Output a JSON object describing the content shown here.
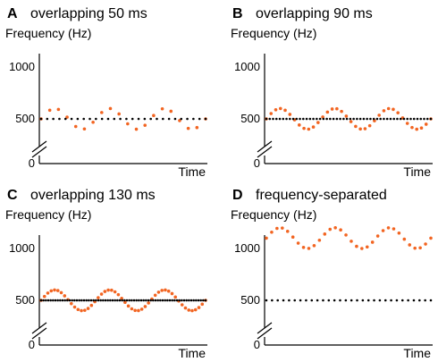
{
  "chart_data": [
    {
      "panel": "A",
      "title": "overlapping 50 ms",
      "type": "scatter",
      "ylabel": "Frequency (Hz)",
      "xlabel": "Time",
      "yticks": [
        0,
        500,
        1000
      ],
      "ylim": [
        0,
        1250
      ],
      "axis_break": true,
      "grid": false,
      "series": [
        {
          "role": "varying",
          "color": "#f26522",
          "dotted": true,
          "pattern": "sine",
          "center": 500,
          "amplitude": 100,
          "cycles": 3,
          "points": 20
        },
        {
          "role": "constant",
          "color": "#000000",
          "dotted": true,
          "pattern": "constant",
          "center": 500,
          "points": 28
        }
      ]
    },
    {
      "panel": "B",
      "title": "overlapping 90 ms",
      "type": "scatter",
      "ylabel": "Frequency (Hz)",
      "xlabel": "Time",
      "yticks": [
        0,
        500,
        1000
      ],
      "ylim": [
        0,
        1250
      ],
      "axis_break": true,
      "grid": false,
      "series": [
        {
          "role": "varying",
          "color": "#f26522",
          "dotted": true,
          "pattern": "sine",
          "center": 500,
          "amplitude": 100,
          "cycles": 3,
          "points": 36
        },
        {
          "role": "constant",
          "color": "#000000",
          "dotted": true,
          "pattern": "constant",
          "center": 500,
          "points": 50
        }
      ]
    },
    {
      "panel": "C",
      "title": "overlapping 130 ms",
      "type": "scatter",
      "ylabel": "Frequency (Hz)",
      "xlabel": "Time",
      "yticks": [
        0,
        500,
        1000
      ],
      "ylim": [
        0,
        1250
      ],
      "axis_break": true,
      "grid": false,
      "series": [
        {
          "role": "varying",
          "color": "#f26522",
          "dotted": true,
          "pattern": "sine",
          "center": 500,
          "amplitude": 100,
          "cycles": 3,
          "points": 50
        },
        {
          "role": "constant",
          "color": "#000000",
          "dotted": true,
          "pattern": "constant",
          "center": 500,
          "points": 70
        }
      ]
    },
    {
      "panel": "D",
      "title": "frequency-separated",
      "type": "scatter",
      "ylabel": "Frequency (Hz)",
      "xlabel": "Time",
      "yticks": [
        0,
        500,
        1000
      ],
      "ylim": [
        0,
        1250
      ],
      "axis_break": true,
      "grid": false,
      "series": [
        {
          "role": "varying",
          "color": "#f26522",
          "dotted": true,
          "pattern": "sine",
          "center": 1100,
          "amplitude": 100,
          "cycles": 3,
          "points": 32
        },
        {
          "role": "constant",
          "color": "#000000",
          "dotted": true,
          "pattern": "constant",
          "center": 500,
          "points": 30
        }
      ]
    }
  ]
}
